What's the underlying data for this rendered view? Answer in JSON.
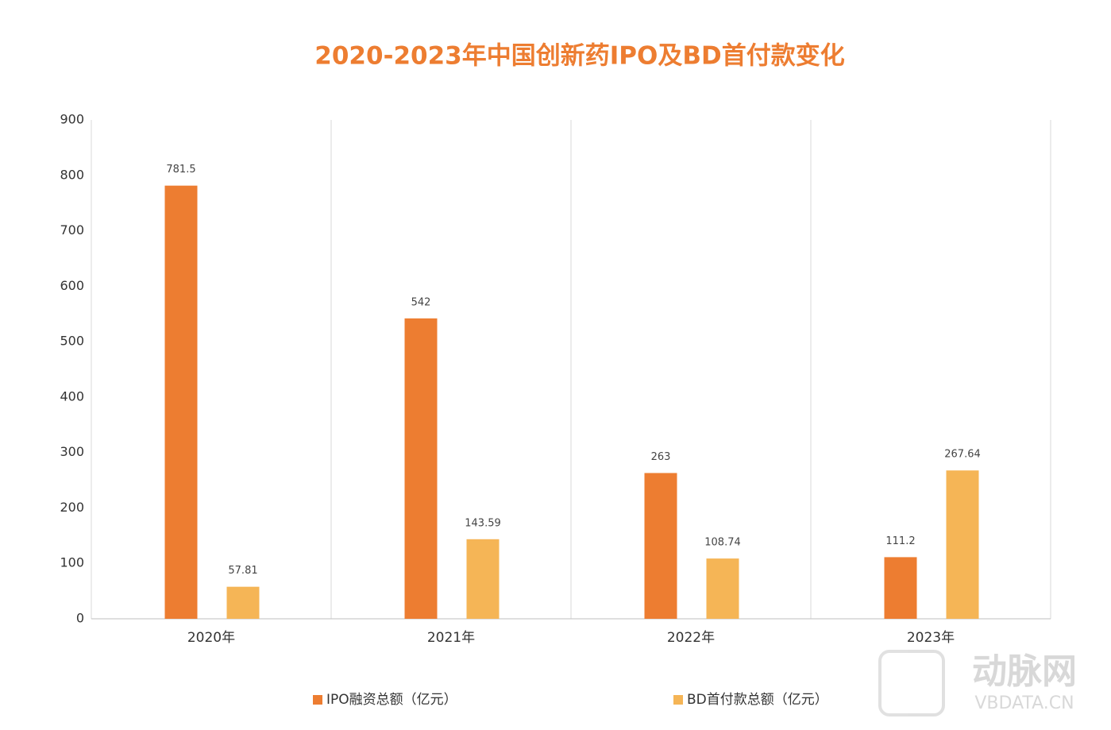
{
  "chart_data": {
    "type": "bar",
    "title": "2020-2023年中国创新药IPO及BD首付款变化",
    "categories": [
      "2020年",
      "2021年",
      "2022年",
      "2023年"
    ],
    "series": [
      {
        "name": "IPO融资总额（亿元）",
        "color": "#ed7d31",
        "values": [
          781.5,
          542,
          263,
          111.2
        ]
      },
      {
        "name": "BD首付款总额（亿元）",
        "color": "#f5b556",
        "values": [
          57.81,
          143.59,
          108.74,
          267.64
        ]
      }
    ],
    "ylim": [
      0,
      900
    ],
    "yticks": [
      0,
      100,
      200,
      300,
      400,
      500,
      600,
      700,
      800,
      900
    ],
    "legend": "bottom",
    "watermark": {
      "logo": "动脉网",
      "site": "VBDATA.CN"
    }
  }
}
